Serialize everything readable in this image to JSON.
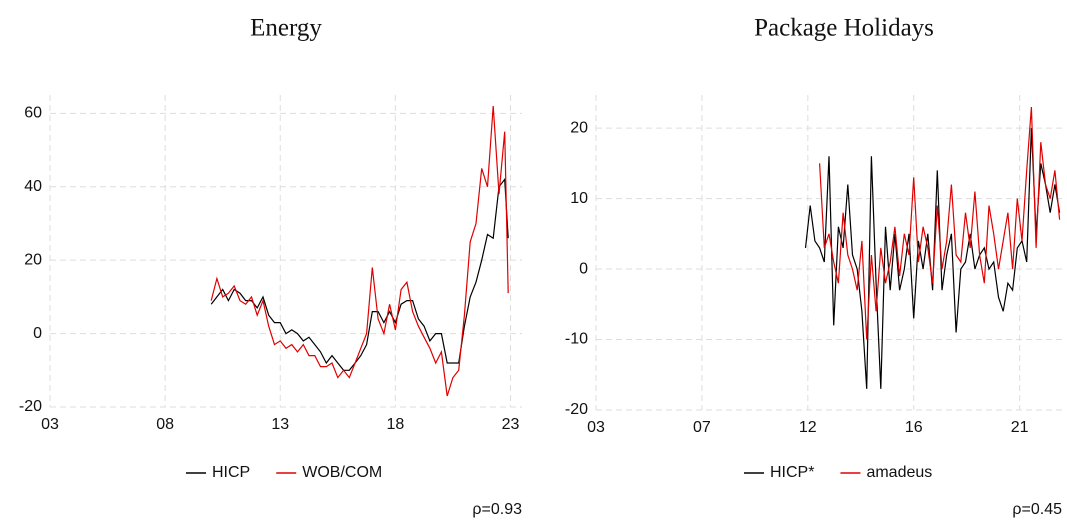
{
  "chart_data": [
    {
      "type": "line",
      "title": "Energy",
      "note": "ρ=0.93",
      "xlim": [
        2003,
        2023.5
      ],
      "ylim": [
        -20,
        65
      ],
      "xticks": [
        {
          "value": 2003,
          "label": "03"
        },
        {
          "value": 2008,
          "label": "08"
        },
        {
          "value": 2013,
          "label": "13"
        },
        {
          "value": 2018,
          "label": "18"
        },
        {
          "value": 2023,
          "label": "23"
        }
      ],
      "yticks": [
        -20,
        0,
        20,
        40,
        60
      ],
      "grid": true,
      "x": [
        2010.0,
        2010.25,
        2010.5,
        2010.75,
        2011.0,
        2011.25,
        2011.5,
        2011.75,
        2012.0,
        2012.25,
        2012.5,
        2012.75,
        2013.0,
        2013.25,
        2013.5,
        2013.75,
        2014.0,
        2014.25,
        2014.5,
        2014.75,
        2015.0,
        2015.25,
        2015.5,
        2015.75,
        2016.0,
        2016.25,
        2016.5,
        2016.75,
        2017.0,
        2017.25,
        2017.5,
        2017.75,
        2018.0,
        2018.25,
        2018.5,
        2018.75,
        2019.0,
        2019.25,
        2019.5,
        2019.75,
        2020.0,
        2020.25,
        2020.5,
        2020.75,
        2021.0,
        2021.25,
        2021.5,
        2021.75,
        2022.0,
        2022.25,
        2022.5,
        2022.75,
        2022.9
      ],
      "series": [
        {
          "name": "HICP",
          "color": "#000000",
          "values": [
            8,
            10,
            12,
            9,
            12,
            11,
            9,
            9,
            7,
            10,
            5,
            3,
            3,
            0,
            1,
            0,
            -2,
            -1,
            -3,
            -5,
            -8,
            -6,
            -8,
            -10,
            -10,
            -8,
            -6,
            -3,
            6,
            6,
            3,
            6,
            3,
            8,
            9,
            9,
            4,
            2,
            -2,
            0,
            0,
            -8,
            -8,
            -8,
            2,
            10,
            14,
            20,
            27,
            26,
            40,
            42,
            26
          ]
        },
        {
          "name": "WOB/COM",
          "color": "#e00000",
          "values": [
            9,
            15,
            10,
            11,
            13,
            9,
            8,
            10,
            5,
            9,
            2,
            -3,
            -2,
            -4,
            -3,
            -5,
            -3,
            -6,
            -6,
            -9,
            -9,
            -8,
            -12,
            -10,
            -12,
            -8,
            -4,
            0,
            18,
            4,
            0,
            8,
            1,
            12,
            14,
            6,
            2,
            -1,
            -4,
            -8,
            -5,
            -17,
            -12,
            -10,
            5,
            25,
            30,
            45,
            40,
            62,
            38,
            55,
            11
          ]
        }
      ]
    },
    {
      "type": "line",
      "title": "Package Holidays",
      "note": "ρ=0.45",
      "xlim": [
        2003,
        2022.8
      ],
      "ylim": [
        -20,
        24.7
      ],
      "xticks": [
        {
          "value": 2003,
          "label": "03"
        },
        {
          "value": 2007.5,
          "label": "07"
        },
        {
          "value": 2012,
          "label": "12"
        },
        {
          "value": 2016.5,
          "label": "16"
        },
        {
          "value": 2021,
          "label": "21"
        }
      ],
      "yticks": [
        -20,
        -10,
        0,
        10,
        20
      ],
      "grid": true,
      "x": [
        2011.9,
        2012.1,
        2012.3,
        2012.5,
        2012.7,
        2012.9,
        2013.1,
        2013.3,
        2013.5,
        2013.7,
        2013.9,
        2014.1,
        2014.3,
        2014.5,
        2014.7,
        2014.9,
        2015.1,
        2015.3,
        2015.5,
        2015.7,
        2015.9,
        2016.1,
        2016.3,
        2016.5,
        2016.7,
        2016.9,
        2017.1,
        2017.3,
        2017.5,
        2017.7,
        2017.9,
        2018.1,
        2018.3,
        2018.5,
        2018.7,
        2018.9,
        2019.1,
        2019.3,
        2019.5,
        2019.7,
        2019.9,
        2020.1,
        2020.3,
        2020.5,
        2020.7,
        2020.9,
        2021.1,
        2021.3,
        2021.5,
        2021.7,
        2021.9,
        2022.1,
        2022.3,
        2022.5,
        2022.7
      ],
      "series": [
        {
          "name": "HICP*",
          "color": "#000000",
          "values": [
            3,
            9,
            4,
            3,
            1,
            16,
            -8,
            6,
            3,
            12,
            2,
            0,
            -6,
            -17,
            16,
            -2,
            -17,
            6,
            -3,
            5,
            -3,
            0,
            5,
            -7,
            4,
            0,
            5,
            -3,
            14,
            -3,
            2,
            5,
            -9,
            0,
            1,
            5,
            0,
            2,
            3,
            0,
            1,
            -4,
            -6,
            -2,
            -3,
            3,
            4,
            1,
            20,
            5,
            15,
            12,
            8,
            12,
            8
          ]
        },
        {
          "name": "amadeus",
          "color": "#e00000",
          "values": [
            null,
            null,
            null,
            15,
            3,
            5,
            1,
            -2,
            8,
            2,
            0,
            -3,
            4,
            -10,
            2,
            -6,
            3,
            -2,
            1,
            6,
            -1,
            5,
            2,
            13,
            1,
            6,
            3,
            -2,
            9,
            0,
            4,
            12,
            2,
            1,
            8,
            3,
            11,
            2,
            -2,
            9,
            5,
            0,
            4,
            8,
            0,
            10,
            4,
            14,
            23,
            3,
            18,
            12,
            10,
            14,
            7
          ]
        }
      ]
    }
  ]
}
